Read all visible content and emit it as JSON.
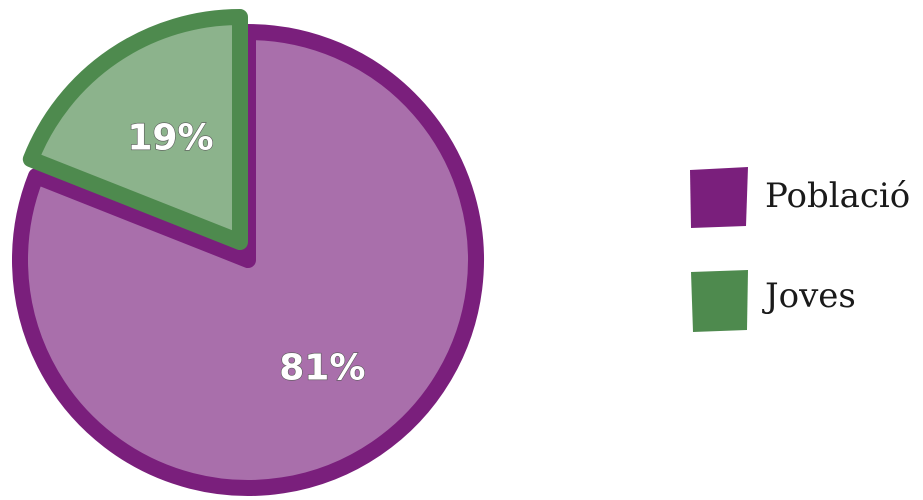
{
  "chart_data": {
    "type": "pie",
    "slices": [
      {
        "label": "Població",
        "value": 81,
        "value_label": "81%",
        "color": "#a96fab",
        "edge_color": "#7a1f7c"
      },
      {
        "label": "Joves",
        "value": 19,
        "value_label": "19%",
        "color": "#8cb38c",
        "edge_color": "#4e8a4e"
      }
    ],
    "legend": {
      "position": "right",
      "items": [
        {
          "label": "Població",
          "color": "#7a1f7c"
        },
        {
          "label": "Joves",
          "color": "#4e8a4e"
        }
      ]
    }
  }
}
